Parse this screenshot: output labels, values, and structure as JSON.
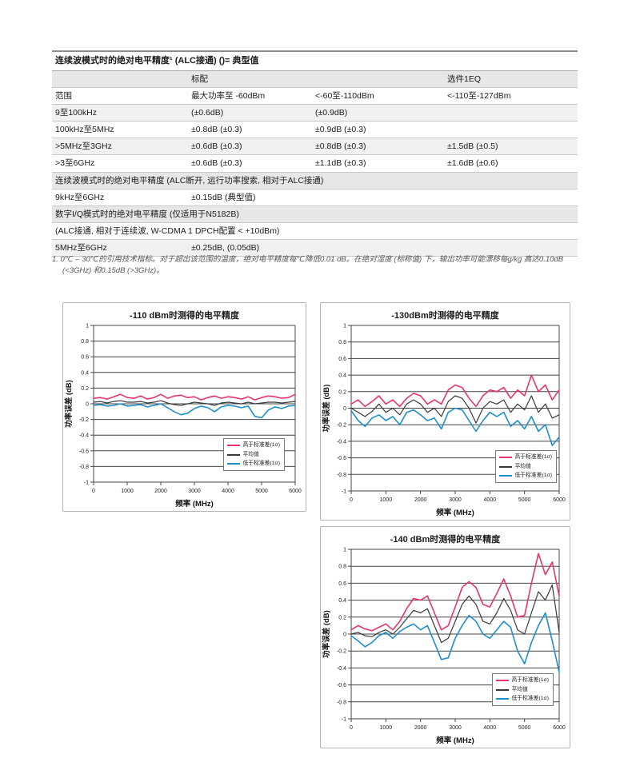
{
  "table": {
    "title": "连续波模式时的绝对电平精度¹ (ALC接通) ()= 典型值",
    "rows": [
      {
        "type": "colhead",
        "cells": [
          "",
          "标配",
          "",
          "选件1EQ"
        ]
      },
      {
        "type": "data",
        "cells": [
          "范围",
          "最大功率至 -60dBm",
          "<-60至-110dBm",
          "<-110至-127dBm"
        ]
      },
      {
        "type": "data",
        "cells": [
          "9至100kHz",
          "(±0.6dB)",
          "(±0.9dB)",
          ""
        ]
      },
      {
        "type": "data",
        "cells": [
          "100kHz至5MHz",
          "±0.8dB (±0.3)",
          "±0.9dB (±0.3)",
          ""
        ]
      },
      {
        "type": "data",
        "cells": [
          ">5MHz至3GHz",
          "±0.6dB (±0.3)",
          "±0.8dB (±0.3)",
          "±1.5dB (±0.5)"
        ]
      },
      {
        "type": "data",
        "cells": [
          ">3至6GHz",
          "±0.6dB (±0.3)",
          "±1.1dB (±0.3)",
          "±1.6dB (±0.6)"
        ]
      },
      {
        "type": "section",
        "cells": [
          "连续波模式时的绝对电平精度 (ALC断开, 运行功率搜索, 相对于ALC接通)"
        ]
      },
      {
        "type": "data",
        "cells": [
          "9kHz至6GHz",
          "±0.15dB (典型值)",
          "",
          ""
        ]
      },
      {
        "type": "section",
        "cells": [
          "数字I/Q模式时的绝对电平精度 (仅适用于N5182B)"
        ]
      },
      {
        "type": "note",
        "cells": [
          "(ALC接通, 相对于连续波, W-CDMA 1 DPCH配置 < +10dBm)"
        ]
      },
      {
        "type": "data",
        "cells": [
          "5MHz至6GHz",
          "±0.25dB, (0.05dB)",
          "",
          ""
        ]
      }
    ]
  },
  "footnote": "1. 0℃ – 30℃的引用技术指标。对于超出该范围的温度，绝对电平精度每℃降低0.01 dB。在绝对湿度 (标称值) 下，输出功率可能漂移每g/kg 高达0.10dB (<3GHz) 和0.15dB (>3GHz)。",
  "chart_data": [
    {
      "type": "line",
      "title": "-110 dBm时测得的电平精度",
      "xlabel": "频率 (MHz)",
      "ylabel": "功率误差 (dB)",
      "xlim": [
        0,
        6000
      ],
      "ylim": [
        -1,
        1
      ],
      "xticks": [
        0,
        1000,
        2000,
        3000,
        4000,
        5000,
        6000
      ],
      "ytick_step": 0.2,
      "grid": "horizontal",
      "legend_position": "lower right",
      "x": [
        0,
        200,
        400,
        600,
        800,
        1000,
        1200,
        1400,
        1600,
        1800,
        2000,
        2200,
        2400,
        2600,
        2800,
        3000,
        3200,
        3400,
        3600,
        3800,
        4000,
        4200,
        4400,
        4600,
        4800,
        5000,
        5200,
        5400,
        5600,
        5800,
        6000
      ],
      "series": [
        {
          "name": "高于标准差(1σ)",
          "color": "#e8356d",
          "values": [
            0.07,
            0.08,
            0.06,
            0.09,
            0.12,
            0.08,
            0.07,
            0.1,
            0.06,
            0.08,
            0.12,
            0.07,
            0.1,
            0.11,
            0.08,
            0.09,
            0.05,
            0.08,
            0.1,
            0.07,
            0.09,
            0.08,
            0.06,
            0.09,
            0.05,
            0.08,
            0.1,
            0.09,
            0.07,
            0.08,
            0.12
          ]
        },
        {
          "name": "平均值",
          "color": "#3a3a3a",
          "values": [
            0.02,
            0.03,
            0.01,
            0.03,
            0.04,
            0.02,
            0.02,
            0.03,
            0.01,
            0.02,
            0.04,
            0.01,
            -0.01,
            -0.02,
            0.0,
            0.02,
            0.01,
            0.0,
            -0.02,
            0.01,
            0.02,
            0.01,
            0.0,
            0.02,
            0.0,
            0.01,
            0.02,
            0.02,
            0.01,
            0.02,
            0.03
          ]
        },
        {
          "name": "低于标准差(1σ)",
          "color": "#1e8fce",
          "values": [
            -0.02,
            -0.01,
            -0.03,
            -0.02,
            0.0,
            -0.03,
            -0.02,
            -0.01,
            -0.04,
            -0.02,
            0.0,
            -0.05,
            -0.1,
            -0.14,
            -0.12,
            -0.06,
            -0.03,
            -0.05,
            -0.1,
            -0.04,
            -0.02,
            -0.03,
            -0.05,
            -0.03,
            -0.16,
            -0.18,
            -0.08,
            -0.04,
            -0.06,
            -0.03,
            -0.02
          ]
        }
      ]
    },
    {
      "type": "line",
      "title": "-130dBm时测得的电平精度",
      "xlabel": "频率 (MHz)",
      "ylabel": "功率误差 (dB)",
      "xlim": [
        0,
        6000
      ],
      "ylim": [
        -1,
        1
      ],
      "xticks": [
        0,
        1000,
        2000,
        3000,
        4000,
        5000,
        6000
      ],
      "ytick_step": 0.2,
      "grid": "horizontal",
      "legend_position": "lower right",
      "x": [
        0,
        200,
        400,
        600,
        800,
        1000,
        1200,
        1400,
        1600,
        1800,
        2000,
        2200,
        2400,
        2600,
        2800,
        3000,
        3200,
        3400,
        3600,
        3800,
        4000,
        4200,
        4400,
        4600,
        4800,
        5000,
        5200,
        5400,
        5600,
        5800,
        6000
      ],
      "series": [
        {
          "name": "高于标准差(1σ)",
          "color": "#e8356d",
          "values": [
            0.05,
            0.1,
            0.02,
            0.08,
            0.15,
            0.05,
            0.1,
            0.02,
            0.12,
            0.18,
            0.15,
            0.05,
            0.1,
            0.05,
            0.22,
            0.28,
            0.25,
            0.12,
            0.02,
            0.15,
            0.22,
            0.2,
            0.25,
            0.12,
            0.22,
            0.15,
            0.4,
            0.2,
            0.28,
            0.1,
            0.22
          ]
        },
        {
          "name": "平均值",
          "color": "#3a3a3a",
          "values": [
            0.0,
            -0.05,
            -0.1,
            -0.04,
            0.05,
            -0.05,
            0.0,
            -0.08,
            0.05,
            0.1,
            0.05,
            -0.05,
            0.0,
            -0.1,
            0.08,
            0.15,
            0.12,
            0.0,
            -0.18,
            0.0,
            0.08,
            0.05,
            0.1,
            -0.05,
            0.05,
            -0.02,
            0.15,
            -0.05,
            0.05,
            -0.12,
            -0.08
          ]
        },
        {
          "name": "低于标准差(1σ)",
          "color": "#1e8fce",
          "values": [
            -0.03,
            -0.15,
            -0.22,
            -0.12,
            -0.08,
            -0.15,
            -0.1,
            -0.2,
            -0.05,
            -0.02,
            -0.08,
            -0.15,
            -0.12,
            -0.25,
            -0.05,
            0.0,
            -0.02,
            -0.15,
            -0.28,
            -0.15,
            -0.05,
            -0.1,
            -0.05,
            -0.22,
            -0.15,
            -0.25,
            -0.1,
            -0.28,
            -0.2,
            -0.45,
            -0.35
          ]
        }
      ]
    },
    {
      "type": "line",
      "title": "-140 dBm时测得的电平精度",
      "xlabel": "频率 (MHz)",
      "ylabel": "功率误差 (dB)",
      "xlim": [
        0,
        6000
      ],
      "ylim": [
        -1,
        1
      ],
      "xticks": [
        0,
        1000,
        2000,
        3000,
        4000,
        5000,
        6000
      ],
      "ytick_step": 0.2,
      "grid": "horizontal",
      "legend_position": "lower right",
      "x": [
        0,
        200,
        400,
        600,
        800,
        1000,
        1200,
        1400,
        1600,
        1800,
        2000,
        2200,
        2400,
        2600,
        2800,
        3000,
        3200,
        3400,
        3600,
        3800,
        4000,
        4200,
        4400,
        4600,
        4800,
        5000,
        5200,
        5400,
        5600,
        5800,
        6000
      ],
      "series": [
        {
          "name": "高于标准差(1σ)",
          "color": "#e8356d",
          "values": [
            0.05,
            0.1,
            0.06,
            0.04,
            0.08,
            0.12,
            0.05,
            0.15,
            0.3,
            0.42,
            0.4,
            0.45,
            0.25,
            0.05,
            0.1,
            0.32,
            0.55,
            0.62,
            0.55,
            0.35,
            0.32,
            0.48,
            0.65,
            0.45,
            0.2,
            0.22,
            0.6,
            0.95,
            0.7,
            0.85,
            0.45
          ]
        },
        {
          "name": "平均值",
          "color": "#3a3a3a",
          "values": [
            0.0,
            0.02,
            -0.02,
            -0.03,
            0.02,
            0.05,
            0.0,
            0.08,
            0.18,
            0.28,
            0.25,
            0.3,
            0.1,
            -0.1,
            -0.05,
            0.15,
            0.35,
            0.45,
            0.35,
            0.15,
            0.12,
            0.25,
            0.42,
            0.28,
            0.05,
            0.0,
            0.25,
            0.5,
            0.4,
            0.58,
            0.02
          ]
        },
        {
          "name": "低于标准差(1σ)",
          "color": "#1e8fce",
          "values": [
            -0.02,
            -0.08,
            -0.15,
            -0.1,
            -0.02,
            0.02,
            -0.05,
            0.03,
            0.08,
            0.12,
            0.05,
            0.1,
            -0.1,
            -0.3,
            -0.28,
            -0.05,
            0.1,
            0.22,
            0.15,
            0.0,
            -0.05,
            0.05,
            0.15,
            0.08,
            -0.2,
            -0.35,
            -0.1,
            0.1,
            0.25,
            -0.08,
            -0.45
          ]
        }
      ]
    }
  ]
}
